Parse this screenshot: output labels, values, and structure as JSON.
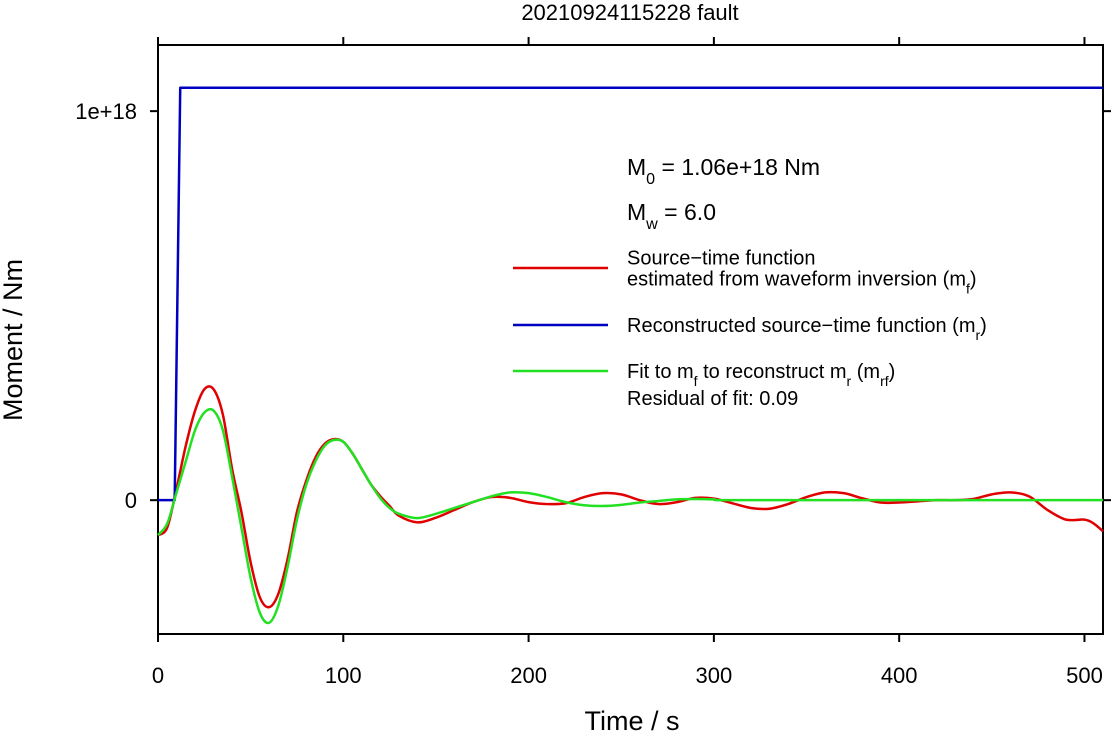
{
  "chart_data": {
    "type": "line",
    "title": "20210924115228 fault",
    "xlabel": "Time / s",
    "ylabel": "Moment / Nm",
    "xlim": [
      0,
      510
    ],
    "xticks": [
      0,
      100,
      200,
      300,
      400,
      500
    ],
    "ylim": [
      -3.44e+17,
      1.17e+18
    ],
    "yticks": [
      0,
      {
        "value": 1e+18,
        "label": "1e+18"
      }
    ],
    "annotations": [
      [
        "M",
        {
          "sub": "0"
        },
        " = 1.06e+18 Nm"
      ],
      [
        "M",
        {
          "sub": "w"
        },
        " = 6.0"
      ]
    ],
    "note": "Residual of fit: 0.09",
    "series": [
      {
        "name": [
          [
            "Source−time function"
          ],
          [
            "estimated from waveform inversion (m",
            {
              "sub": "f"
            },
            ")"
          ]
        ],
        "color": "#e00000",
        "x": [
          0,
          5,
          10,
          15,
          20,
          25,
          30,
          35,
          40,
          45,
          50,
          55,
          60,
          65,
          70,
          75,
          80,
          85,
          90,
          95,
          100,
          105,
          110,
          115,
          120,
          125,
          130,
          140,
          150,
          160,
          170,
          180,
          190,
          200,
          210,
          220,
          230,
          240,
          250,
          260,
          270,
          280,
          290,
          300,
          310,
          320,
          330,
          340,
          350,
          360,
          370,
          380,
          390,
          400,
          410,
          420,
          430,
          440,
          450,
          460,
          470,
          480,
          490,
          500,
          505,
          510
        ],
        "values": [
          -9e+16,
          -7e+16,
          3e+16,
          1.4e+17,
          2.3e+17,
          2.85e+17,
          2.85e+17,
          2.2e+17,
          8e+16,
          -3e+16,
          -1.6e+17,
          -2.5e+17,
          -2.75e+17,
          -2.4e+17,
          -1.5e+17,
          -3e+16,
          5e+16,
          1.1e+17,
          1.45e+17,
          1.57e+17,
          1.5e+17,
          1.2e+17,
          8e+16,
          4e+16,
          1e+16,
          -1.5e+16,
          -4e+16,
          -5.7e+16,
          -4.5e+16,
          -2.5e+16,
          -5000000000000000.0,
          8000000000000000.0,
          6000000000000000.0,
          -5000000000000000.0,
          -1e+16,
          -8000000000000000.0,
          8000000000000000.0,
          1.8e+16,
          1.5e+16,
          0,
          -1e+16,
          -5000000000000000.0,
          6000000000000000.0,
          4000000000000000.0,
          -8000000000000000.0,
          -2e+16,
          -2.2e+16,
          -1e+16,
          8000000000000000.0,
          2e+16,
          1.8e+16,
          5000000000000000.0,
          -6000000000000000.0,
          -6000000000000000.0,
          -3000000000000000.0,
          0,
          0,
          3000000000000000.0,
          1.5e+16,
          2e+16,
          1e+16,
          -2.5e+16,
          -5e+16,
          -5e+16,
          -6e+16,
          -8e+16
        ]
      },
      {
        "name": [
          [
            "Reconstructed source−time function (m",
            {
              "sub": "r"
            },
            ")"
          ]
        ],
        "color": "#0000c0",
        "x": [
          0,
          9,
          12,
          510
        ],
        "values": [
          0,
          0,
          1.06e+18,
          1.06e+18
        ]
      },
      {
        "name": [
          [
            "Fit to m",
            {
              "sub": "f"
            },
            " to reconstruct m",
            {
              "sub": "r"
            },
            " (m",
            {
              "sub": "rf"
            },
            ")"
          ]
        ],
        "color": "#22e022",
        "x": [
          0,
          5,
          10,
          15,
          20,
          25,
          30,
          35,
          40,
          45,
          50,
          55,
          60,
          65,
          70,
          75,
          80,
          85,
          90,
          95,
          100,
          105,
          110,
          115,
          120,
          125,
          130,
          140,
          150,
          160,
          170,
          180,
          190,
          200,
          210,
          220,
          230,
          240,
          250,
          260,
          270,
          280,
          290,
          300,
          310,
          400,
          510
        ],
        "values": [
          -9e+16,
          -6e+16,
          2e+16,
          1e+17,
          1.8e+17,
          2.25e+17,
          2.3e+17,
          1.8e+17,
          6e+16,
          -7e+16,
          -2e+17,
          -2.9e+17,
          -3.15e+17,
          -2.7e+17,
          -1.7e+17,
          -5e+16,
          4e+16,
          1e+17,
          1.4e+17,
          1.55e+17,
          1.5e+17,
          1.2e+17,
          8e+16,
          4e+16,
          5000000000000000.0,
          -2e+16,
          -3.5e+16,
          -4.6e+16,
          -3.5e+16,
          -2e+16,
          -5000000000000000.0,
          1e+16,
          2e+16,
          1.8e+16,
          8000000000000000.0,
          -5000000000000000.0,
          -1.3e+16,
          -1.5e+16,
          -1.2e+16,
          -6000000000000000.0,
          -2000000000000000.0,
          2000000000000000.0,
          3000000000000000.0,
          2000000000000000.0,
          0,
          0,
          0
        ]
      }
    ]
  }
}
